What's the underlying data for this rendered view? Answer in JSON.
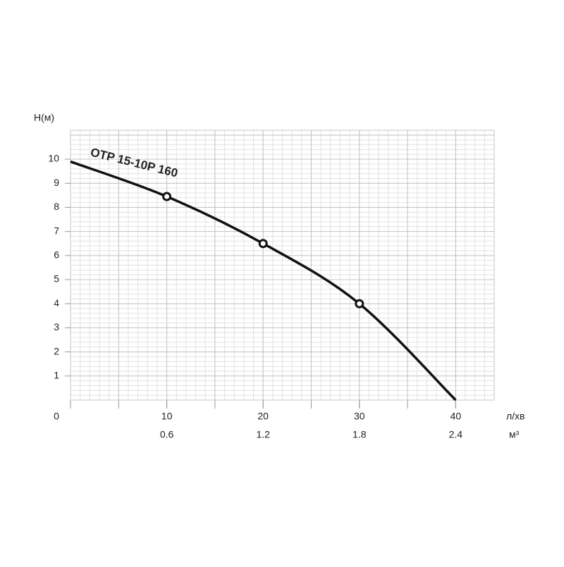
{
  "chart_data": {
    "type": "line",
    "x_label": "л/хв",
    "x2_label": "м³",
    "y_label": "H(м)",
    "x": [
      0,
      10,
      20,
      30,
      40
    ],
    "series": [
      {
        "name": "OTP 15-10P 160",
        "color": "#111111",
        "values": [
          9.9,
          8.45,
          6.5,
          4.0,
          0
        ],
        "markers": [
          false,
          true,
          true,
          true,
          false
        ]
      }
    ],
    "xlim": [
      0,
      44
    ],
    "xticks": [
      0,
      10,
      20,
      30,
      40
    ],
    "x2lim": [
      0,
      2.64
    ],
    "x2ticks": [
      0.6,
      1.2,
      1.8,
      2.4
    ],
    "ylim": [
      0,
      11.2
    ],
    "yticks": [
      1,
      2,
      3,
      4,
      5,
      6,
      7,
      8,
      9,
      10
    ],
    "grid": {
      "x_major": 5,
      "x_minor": 1,
      "y_major": 1,
      "y_minor": 0.2
    }
  }
}
